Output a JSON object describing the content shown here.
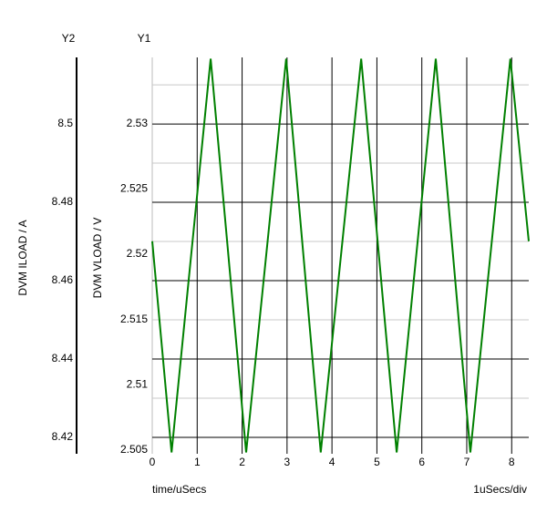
{
  "chart_data": {
    "type": "line",
    "y2_title": "Y2",
    "y1_title": "Y1",
    "y2_label": "DVM ILOAD / A",
    "ylabel": "DVM VLOAD / V",
    "xlabel": "time/uSecs",
    "x_scale_note": "1uSecs/div",
    "x": [
      0,
      0.43,
      1.3,
      2.09,
      2.98,
      3.75,
      4.65,
      5.44,
      6.31,
      7.08,
      7.97,
      8.38
    ],
    "series": [
      {
        "color": "#008000",
        "values": [
          2.521,
          2.5048,
          2.535,
          2.5048,
          2.535,
          2.5048,
          2.535,
          2.5048,
          2.535,
          2.5048,
          2.535,
          2.521
        ]
      }
    ],
    "xlim": [
      0,
      8.38
    ],
    "xticks": [
      0,
      1,
      2,
      3,
      4,
      5,
      6,
      7,
      8
    ],
    "ylim": [
      2.5047,
      2.5351
    ],
    "yticks": [
      2.505,
      2.51,
      2.515,
      2.52,
      2.525,
      2.53
    ],
    "y2lim": [
      8.4158,
      8.517
    ],
    "y2ticks": [
      8.42,
      8.44,
      8.46,
      8.48,
      8.5
    ],
    "y2minorticks": [
      8.43,
      8.45,
      8.47,
      8.49,
      8.51
    ],
    "grid": true
  }
}
